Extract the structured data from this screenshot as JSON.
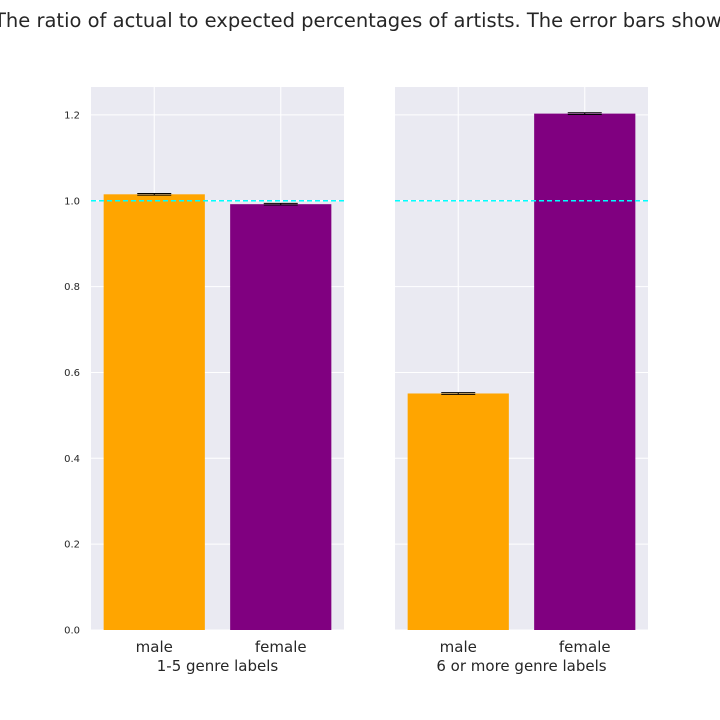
{
  "figure": {
    "suptitle": "The ratio of actual to expected percentages of artists. The error bars show one STD"
  },
  "colors": {
    "male": "#FFA500",
    "female": "#800080",
    "reference_line": "#00FFFF",
    "axes_background": "#EAEAF2",
    "grid": "#FFFFFF",
    "error_bar": "#000000"
  },
  "chart_data": [
    {
      "type": "bar",
      "title": "",
      "xlabel": "1-5 genre labels",
      "ylabel": "",
      "categories": [
        "male",
        "female"
      ],
      "values": [
        1.015,
        0.992
      ],
      "errors": [
        0.002,
        0.002
      ],
      "bar_colors": [
        "#FFA500",
        "#800080"
      ],
      "ylim": [
        0,
        1.265
      ],
      "yticks": [
        0.0,
        0.2,
        0.4,
        0.6,
        0.8,
        1.0,
        1.2
      ],
      "ytick_labels": [
        "0.0",
        "0.2",
        "0.4",
        "0.6",
        "0.8",
        "1.0",
        "1.2"
      ],
      "show_yticks": true,
      "reference_line": 1.0,
      "grid": true
    },
    {
      "type": "bar",
      "title": "",
      "xlabel": "6 or more genre labels",
      "ylabel": "",
      "categories": [
        "male",
        "female"
      ],
      "values": [
        0.551,
        1.203
      ],
      "errors": [
        0.002,
        0.002
      ],
      "bar_colors": [
        "#FFA500",
        "#800080"
      ],
      "ylim": [
        0,
        1.265
      ],
      "yticks": [
        0.0,
        0.2,
        0.4,
        0.6,
        0.8,
        1.0,
        1.2
      ],
      "show_yticks": false,
      "reference_line": 1.0,
      "grid": true
    }
  ]
}
